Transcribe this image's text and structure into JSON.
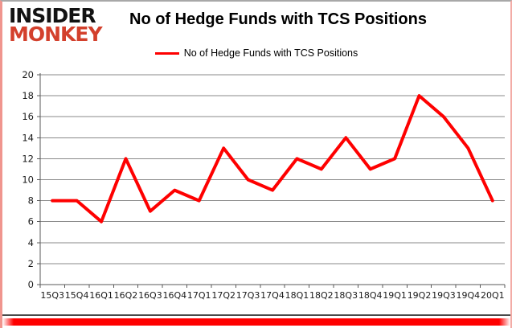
{
  "logo": {
    "line1": "INSIDER",
    "line2": "MONKEY"
  },
  "header": {
    "title": "No of Hedge Funds with TCS Positions"
  },
  "legend": {
    "label": "No of Hedge Funds with TCS Positions"
  },
  "colors": {
    "series_red": "#fe0000",
    "logo_red": "#d3402c",
    "gridline_gray": "#8a8a8a",
    "axis_gray": "#595959",
    "tick_label": "#1a1a1a",
    "bottom_bar_red": "#fe0000"
  },
  "chart_data": {
    "type": "line",
    "title": "No of Hedge Funds with TCS Positions",
    "categories": [
      "15Q3",
      "15Q4",
      "16Q1",
      "16Q2",
      "16Q3",
      "16Q4",
      "17Q1",
      "17Q2",
      "17Q3",
      "17Q4",
      "18Q1",
      "18Q2",
      "18Q3",
      "18Q4",
      "19Q1",
      "19Q2",
      "19Q3",
      "19Q4",
      "20Q1"
    ],
    "series": [
      {
        "name": "No of Hedge Funds with TCS Positions",
        "color": "#fe0000",
        "values": [
          8,
          8,
          6,
          12,
          7,
          9,
          8,
          13,
          10,
          9,
          12,
          11,
          14,
          11,
          12,
          18,
          16,
          13,
          8
        ]
      }
    ],
    "xlabel": "",
    "ylabel": "",
    "ylim": [
      0,
      20
    ],
    "ytick_step": 2,
    "grid": true,
    "legend_position": "top-center"
  }
}
